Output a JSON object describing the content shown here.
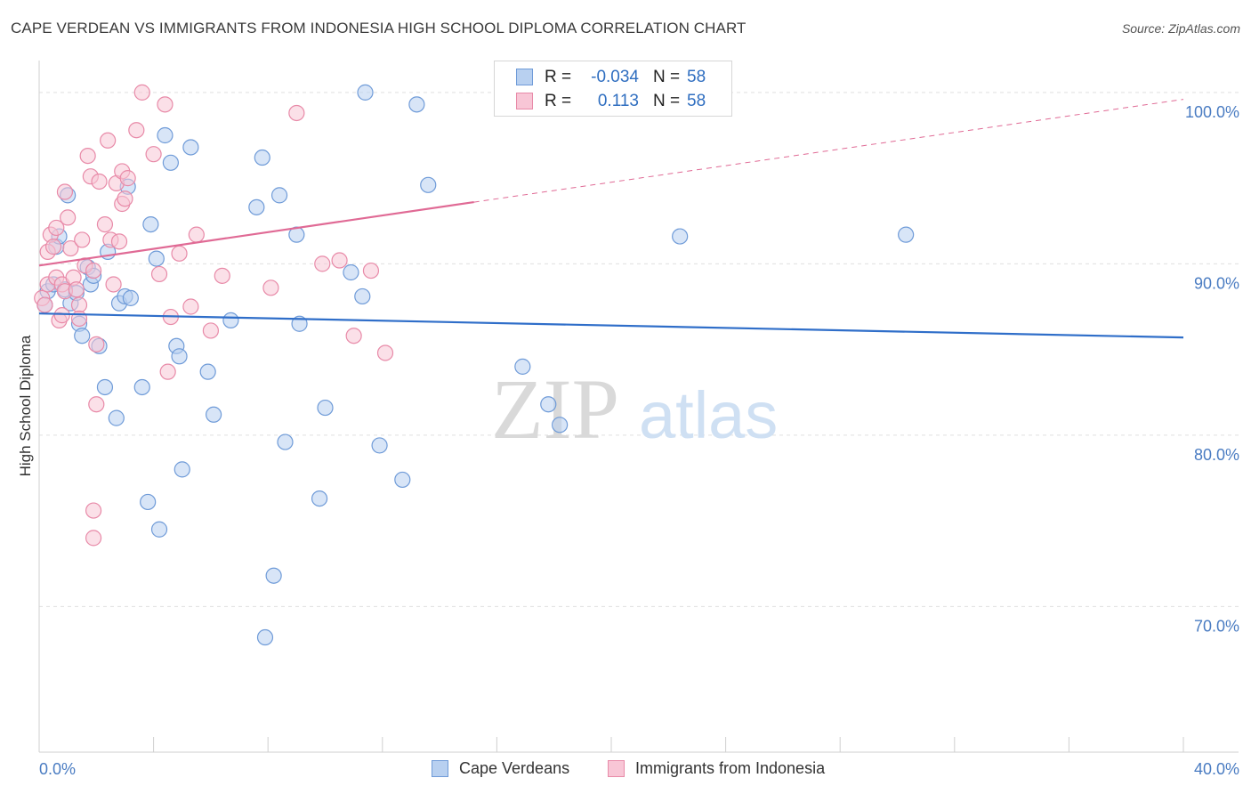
{
  "header": {
    "title": "CAPE VERDEAN VS IMMIGRANTS FROM INDONESIA HIGH SCHOOL DIPLOMA CORRELATION CHART",
    "source": "Source: ZipAtlas.com"
  },
  "watermark": {
    "zip": "ZIP",
    "atlas": "atlas"
  },
  "legend": {
    "rows": [
      {
        "r_label": "R =",
        "r_value": "-0.034",
        "n_label": "N =",
        "n_value": "58"
      },
      {
        "r_label": "R =",
        "r_value": "0.113",
        "n_label": "N =",
        "n_value": "58"
      }
    ]
  },
  "bottom_legend": {
    "items": [
      {
        "label": "Cape Verdeans"
      },
      {
        "label": "Immigrants from Indonesia"
      }
    ]
  },
  "chart_data": {
    "type": "scatter",
    "title": "CAPE VERDEAN VS IMMIGRANTS FROM INDONESIA HIGH SCHOOL DIPLOMA CORRELATION CHART",
    "xlabel": "",
    "ylabel": "High School Diploma",
    "xlim": [
      0,
      40
    ],
    "ylim": [
      61.5,
      101.5
    ],
    "x_ticks": [
      "0.0%",
      "40.0%"
    ],
    "y_ticks": [
      {
        "value": 100,
        "label": "100.0%"
      },
      {
        "value": 90,
        "label": "90.0%"
      },
      {
        "value": 80,
        "label": "80.0%"
      },
      {
        "value": 70,
        "label": "70.0%"
      }
    ],
    "grid": "horizontal dashed",
    "legend_position": "top-center",
    "colors": {
      "blue_fill": "#b8d0f0",
      "blue_stroke": "#6f9bd8",
      "blue_line": "#2f6ec9",
      "pink_fill": "#f8c6d6",
      "pink_stroke": "#e88aa8",
      "pink_line": "#e06a95"
    },
    "series": [
      {
        "name": "Cape Verdeans",
        "color": "#6f9bd8",
        "points": [
          [
            0.2,
            87.6
          ],
          [
            0.3,
            88.4
          ],
          [
            0.5,
            88.8
          ],
          [
            0.6,
            91.0
          ],
          [
            0.7,
            91.6
          ],
          [
            0.9,
            88.5
          ],
          [
            1.0,
            94.0
          ],
          [
            1.1,
            87.7
          ],
          [
            1.3,
            88.3
          ],
          [
            1.4,
            86.5
          ],
          [
            1.5,
            85.8
          ],
          [
            1.7,
            89.8
          ],
          [
            1.8,
            88.8
          ],
          [
            1.9,
            89.3
          ],
          [
            2.1,
            85.2
          ],
          [
            2.3,
            82.8
          ],
          [
            2.4,
            90.7
          ],
          [
            2.7,
            81.0
          ],
          [
            2.8,
            87.7
          ],
          [
            3.0,
            88.1
          ],
          [
            3.1,
            94.5
          ],
          [
            3.2,
            88.0
          ],
          [
            3.6,
            82.8
          ],
          [
            3.8,
            76.1
          ],
          [
            3.9,
            92.3
          ],
          [
            4.1,
            90.3
          ],
          [
            4.2,
            74.5
          ],
          [
            4.4,
            97.5
          ],
          [
            4.6,
            95.9
          ],
          [
            4.8,
            85.2
          ],
          [
            4.9,
            84.6
          ],
          [
            5.0,
            78.0
          ],
          [
            5.3,
            96.8
          ],
          [
            5.9,
            83.7
          ],
          [
            6.1,
            81.2
          ],
          [
            6.7,
            86.7
          ],
          [
            7.6,
            93.3
          ],
          [
            7.8,
            96.2
          ],
          [
            7.9,
            68.2
          ],
          [
            8.2,
            71.8
          ],
          [
            8.4,
            94.0
          ],
          [
            8.6,
            79.6
          ],
          [
            9.0,
            91.7
          ],
          [
            9.1,
            86.5
          ],
          [
            9.8,
            76.3
          ],
          [
            10.0,
            81.6
          ],
          [
            10.9,
            89.5
          ],
          [
            11.3,
            88.1
          ],
          [
            11.4,
            100.0
          ],
          [
            11.9,
            79.4
          ],
          [
            12.7,
            77.4
          ],
          [
            13.2,
            99.3
          ],
          [
            13.6,
            94.6
          ],
          [
            16.9,
            84.0
          ],
          [
            17.8,
            81.8
          ],
          [
            18.2,
            80.6
          ],
          [
            22.4,
            91.6
          ],
          [
            30.3,
            91.7
          ]
        ]
      },
      {
        "name": "Immigrants from Indonesia",
        "color": "#e88aa8",
        "points": [
          [
            0.1,
            88.0
          ],
          [
            0.2,
            87.6
          ],
          [
            0.3,
            88.8
          ],
          [
            0.3,
            90.7
          ],
          [
            0.4,
            91.7
          ],
          [
            0.5,
            91.0
          ],
          [
            0.6,
            92.1
          ],
          [
            0.6,
            89.2
          ],
          [
            0.7,
            86.7
          ],
          [
            0.8,
            87.0
          ],
          [
            0.8,
            88.8
          ],
          [
            0.9,
            94.2
          ],
          [
            0.9,
            88.4
          ],
          [
            1.0,
            92.7
          ],
          [
            1.1,
            90.9
          ],
          [
            1.2,
            89.2
          ],
          [
            1.3,
            88.5
          ],
          [
            1.4,
            87.6
          ],
          [
            1.4,
            86.8
          ],
          [
            1.5,
            91.4
          ],
          [
            1.6,
            89.9
          ],
          [
            1.7,
            96.3
          ],
          [
            1.8,
            95.1
          ],
          [
            1.9,
            89.6
          ],
          [
            1.9,
            74.0
          ],
          [
            1.9,
            75.6
          ],
          [
            2.0,
            85.3
          ],
          [
            2.0,
            81.8
          ],
          [
            2.1,
            94.8
          ],
          [
            2.3,
            92.3
          ],
          [
            2.4,
            97.2
          ],
          [
            2.5,
            91.4
          ],
          [
            2.6,
            88.8
          ],
          [
            2.7,
            94.7
          ],
          [
            2.8,
            91.3
          ],
          [
            2.9,
            95.4
          ],
          [
            2.9,
            93.5
          ],
          [
            3.0,
            93.8
          ],
          [
            3.1,
            95.0
          ],
          [
            3.4,
            97.8
          ],
          [
            3.6,
            100.0
          ],
          [
            4.0,
            96.4
          ],
          [
            4.2,
            89.4
          ],
          [
            4.4,
            99.3
          ],
          [
            4.5,
            83.7
          ],
          [
            4.6,
            86.9
          ],
          [
            4.9,
            90.6
          ],
          [
            5.3,
            87.5
          ],
          [
            5.5,
            91.7
          ],
          [
            6.0,
            86.1
          ],
          [
            6.4,
            89.3
          ],
          [
            8.1,
            88.6
          ],
          [
            9.0,
            98.8
          ],
          [
            9.9,
            90.0
          ],
          [
            10.5,
            90.2
          ],
          [
            11.0,
            85.8
          ],
          [
            11.6,
            89.6
          ],
          [
            12.1,
            84.8
          ]
        ]
      }
    ],
    "trend_lines": [
      {
        "series": "Cape Verdeans",
        "x": [
          0,
          40
        ],
        "y": [
          87.1,
          85.7
        ],
        "style": "solid"
      },
      {
        "series": "Immigrants from Indonesia",
        "x": [
          0,
          15.2
        ],
        "y": [
          89.9,
          93.6
        ],
        "style": "solid"
      },
      {
        "series": "Immigrants from Indonesia",
        "x": [
          15.2,
          40
        ],
        "y": [
          93.6,
          99.6
        ],
        "style": "dashed"
      }
    ]
  }
}
